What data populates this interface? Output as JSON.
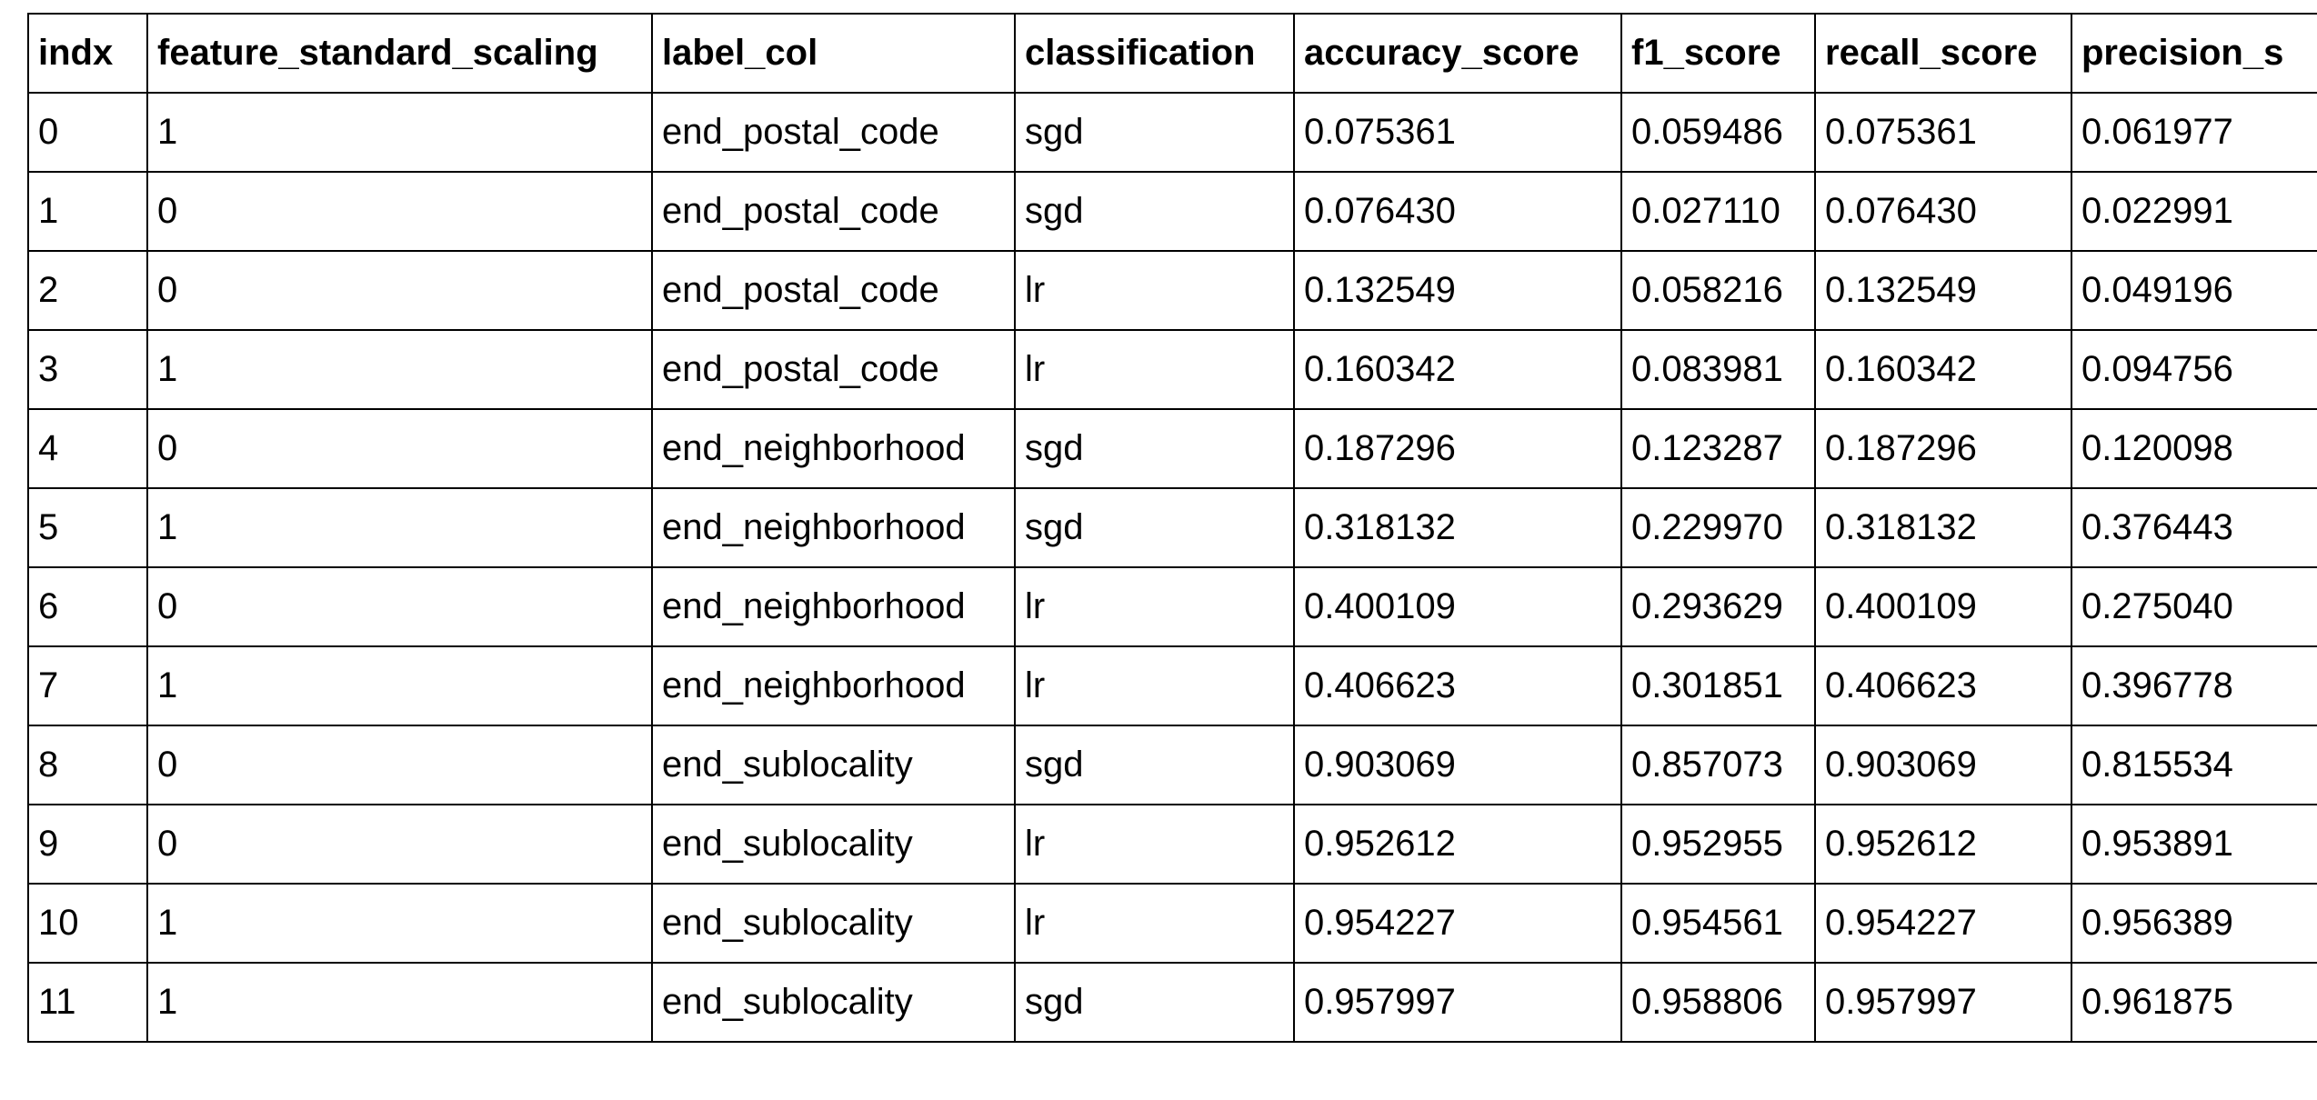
{
  "table": {
    "columns": [
      "indx",
      "feature_standard_scaling",
      "label_col",
      "classification",
      "accuracy_score",
      "f1_score",
      "recall_score",
      "precision_s"
    ],
    "rows": [
      [
        "0",
        "1",
        "end_postal_code",
        "sgd",
        "0.075361",
        "0.059486",
        "0.075361",
        "0.061977"
      ],
      [
        "1",
        "0",
        "end_postal_code",
        "sgd",
        "0.076430",
        "0.027110",
        "0.076430",
        "0.022991"
      ],
      [
        "2",
        "0",
        "end_postal_code",
        "lr",
        "0.132549",
        "0.058216",
        "0.132549",
        "0.049196"
      ],
      [
        "3",
        "1",
        "end_postal_code",
        "lr",
        "0.160342",
        "0.083981",
        "0.160342",
        "0.094756"
      ],
      [
        "4",
        "0",
        "end_neighborhood",
        "sgd",
        "0.187296",
        "0.123287",
        "0.187296",
        "0.120098"
      ],
      [
        "5",
        "1",
        "end_neighborhood",
        "sgd",
        "0.318132",
        "0.229970",
        "0.318132",
        "0.376443"
      ],
      [
        "6",
        "0",
        "end_neighborhood",
        "lr",
        "0.400109",
        "0.293629",
        "0.400109",
        "0.275040"
      ],
      [
        "7",
        "1",
        "end_neighborhood",
        "lr",
        "0.406623",
        "0.301851",
        "0.406623",
        "0.396778"
      ],
      [
        "8",
        "0",
        "end_sublocality",
        "sgd",
        "0.903069",
        "0.857073",
        "0.903069",
        "0.815534"
      ],
      [
        "9",
        "0",
        "end_sublocality",
        "lr",
        "0.952612",
        "0.952955",
        "0.952612",
        "0.953891"
      ],
      [
        "10",
        "1",
        "end_sublocality",
        "lr",
        "0.954227",
        "0.954561",
        "0.954227",
        "0.956389"
      ],
      [
        "11",
        "1",
        "end_sublocality",
        "sgd",
        "0.957997",
        "0.958806",
        "0.957997",
        "0.961875"
      ]
    ]
  }
}
